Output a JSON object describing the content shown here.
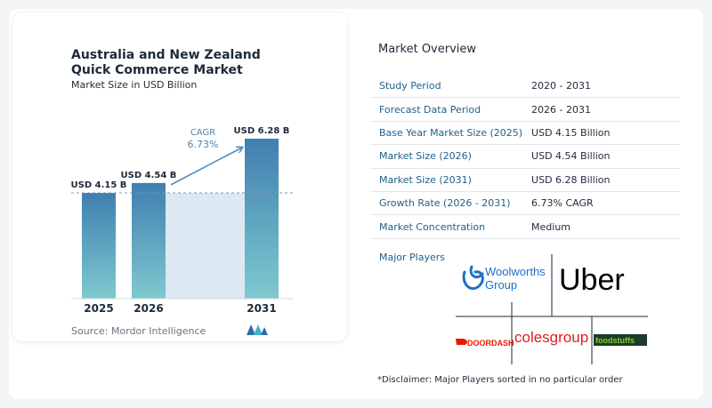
{
  "chart_data": {
    "type": "bar",
    "title": "Australia and New Zealand Quick Commerce Market",
    "subtitle": "Market Size in USD Billion",
    "categories": [
      "2025",
      "2026",
      "2031"
    ],
    "values": [
      4.15,
      4.54,
      6.28
    ],
    "value_labels": [
      "USD 4.15 B",
      "USD 4.54 B",
      "USD 6.28 B"
    ],
    "ylim": [
      0,
      6.28
    ],
    "cagr_label": "CAGR",
    "cagr_value": "6.73%",
    "grid": false,
    "colors": {
      "bar_top": "#3f7fb0",
      "bar_bottom": "#7fc9cf",
      "band": "#dce8f2",
      "arrow": "#4a90c8",
      "cagr_text": "#4a86b8"
    }
  },
  "source": "Source:  Mordor Intelligence",
  "overview": {
    "title": "Market Overview",
    "rows": [
      {
        "key": "Study Period",
        "value": "2020 - 2031"
      },
      {
        "key": "Forecast Data Period",
        "value": "2026 - 2031"
      },
      {
        "key": "Base Year Market Size (2025)",
        "value": "USD 4.15 Billion"
      },
      {
        "key": "Market Size (2026)",
        "value": "USD 4.54 Billion"
      },
      {
        "key": "Market Size (2031)",
        "value": "USD 6.28 Billion"
      },
      {
        "key": "Growth Rate (2026 - 2031)",
        "value": "6.73% CAGR"
      },
      {
        "key": "Market Concentration",
        "value": "Medium"
      }
    ],
    "players_label": "Major Players",
    "players": {
      "woolworths_line1": "Woolworths",
      "woolworths_line2": "Group",
      "uber": "Uber",
      "doordash": "DOORDASH",
      "coles": "colesgroup",
      "foodstuffs": "foodstuffs"
    },
    "disclaimer": "*Disclaimer: Major Players sorted in no particular order"
  }
}
